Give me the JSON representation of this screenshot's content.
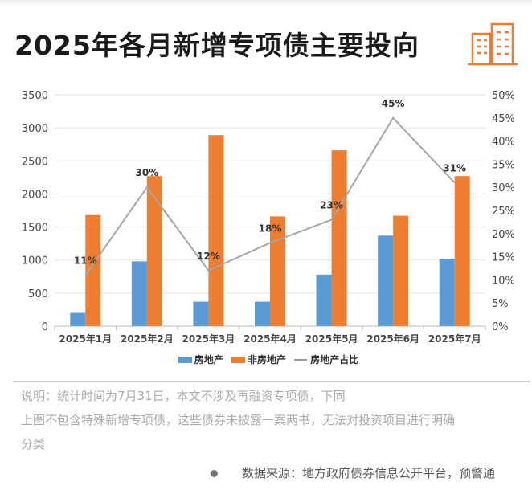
{
  "title": "2025年各月新增专项债主要投向",
  "colors": {
    "real_estate": "#5b9bd5",
    "non_real_estate": "#ed7d31",
    "ratio_line": "#a6a6a6",
    "icon": "#ed7d31"
  },
  "icon": "building-icon",
  "chart_data": {
    "type": "bar",
    "categories": [
      "2025年1月",
      "2025年2月",
      "2025年3月",
      "2025年4月",
      "2025年5月",
      "2025年6月",
      "2025年7月"
    ],
    "series": [
      {
        "name": "房地产",
        "type": "bar",
        "values": [
          200,
          980,
          370,
          370,
          780,
          1370,
          1020
        ]
      },
      {
        "name": "非房地产",
        "type": "bar",
        "values": [
          1680,
          2270,
          2890,
          1660,
          2660,
          1670,
          2270
        ]
      },
      {
        "name": "房地产占比",
        "type": "line",
        "axis": "right",
        "values": [
          11,
          30,
          12,
          18,
          23,
          45,
          31
        ],
        "labels": [
          "11%",
          "30%",
          "12%",
          "18%",
          "23%",
          "45%",
          "31%"
        ]
      }
    ],
    "ylim": [
      0,
      3500
    ],
    "yticks": [
      "0",
      "500",
      "1000",
      "1500",
      "2000",
      "2500",
      "3000",
      "3500"
    ],
    "y2lim": [
      0,
      50
    ],
    "y2ticks": [
      "0%",
      "5%",
      "10%",
      "15%",
      "20%",
      "25%",
      "30%",
      "35%",
      "40%",
      "45%",
      "50%"
    ],
    "grid": true,
    "legend_position": "bottom"
  },
  "notes": [
    "说明：统计时间为7月31日，本文不涉及再融资专项债，下同",
    "上图不包含特殊新增专项债，这些债券未披露一案两书，无法对投资项目进行明确",
    "分类"
  ],
  "source": "数据来源：地方政府债券信息公开平台，预警通"
}
